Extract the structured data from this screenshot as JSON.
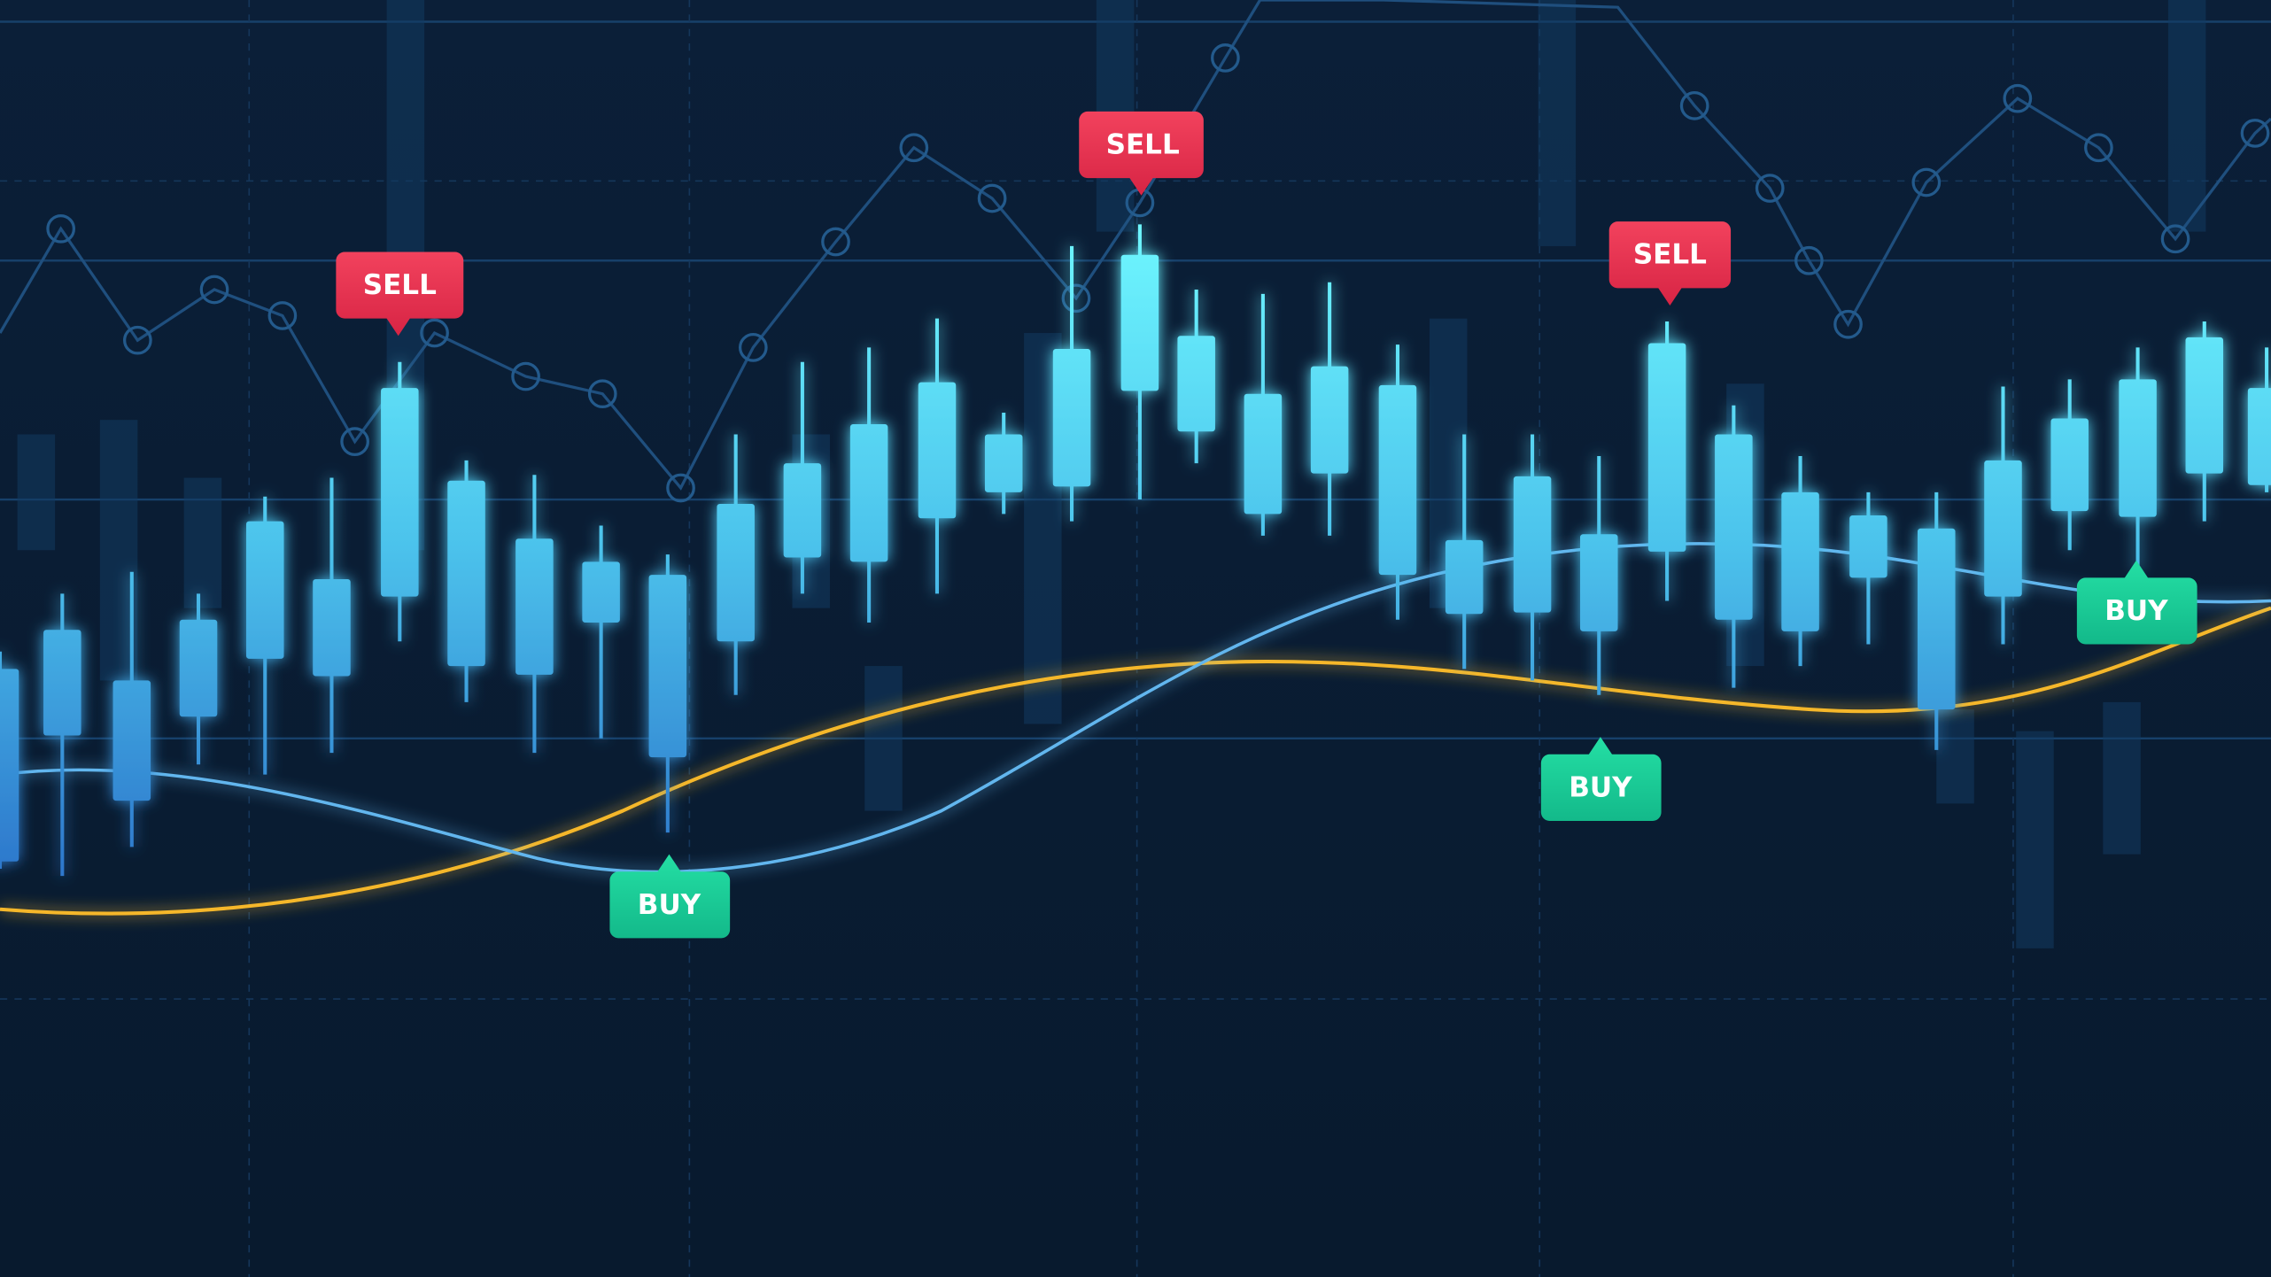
{
  "sell_labels": [
    "SELL",
    "SELL",
    "SELL"
  ],
  "buy_labels": [
    "BUY",
    "BUY",
    "BUY"
  ]
}
